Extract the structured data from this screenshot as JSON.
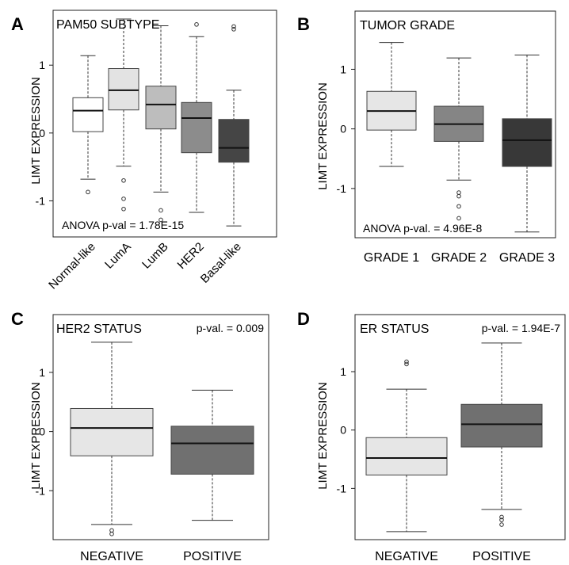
{
  "ylabel": "LIMT EXPRESSION",
  "chart_data": [
    {
      "type": "box",
      "panel": "A",
      "title": "PAM50 SUBTYPE",
      "stat": "ANOVA p-val = 1.78E-15",
      "ylim": [
        -1.45,
        1.75
      ],
      "yticks": [
        1,
        0,
        -1
      ],
      "categories": [
        "Normal-like",
        "LumA",
        "LumB",
        "HER2",
        "Basal-like"
      ],
      "colors": [
        "#ffffff",
        "#e3e3e3",
        "#bdbdbd",
        "#8c8c8c",
        "#454545"
      ],
      "boxes": [
        {
          "min": -0.68,
          "q1": 0.02,
          "median": 0.33,
          "q3": 0.52,
          "max": 1.14,
          "outliers": [
            -0.87
          ]
        },
        {
          "min": -0.49,
          "q1": 0.34,
          "median": 0.63,
          "q3": 0.95,
          "max": 1.68,
          "outliers": [
            -0.7,
            -0.97,
            -1.12
          ]
        },
        {
          "min": -0.87,
          "q1": 0.06,
          "median": 0.42,
          "q3": 0.69,
          "max": 1.58,
          "outliers": [
            -1.14,
            -1.28
          ]
        },
        {
          "min": -1.17,
          "q1": -0.29,
          "median": 0.22,
          "q3": 0.45,
          "max": 1.42,
          "outliers": [
            1.6
          ]
        },
        {
          "min": -1.37,
          "q1": -0.43,
          "median": -0.22,
          "q3": 0.2,
          "max": 0.63,
          "outliers": [
            1.53,
            1.57
          ]
        }
      ]
    },
    {
      "type": "box",
      "panel": "B",
      "title": "TUMOR GRADE",
      "stat": "ANOVA p-val. = 4.96E-8",
      "ylim": [
        -1.8,
        1.95
      ],
      "yticks": [
        1,
        0,
        -1
      ],
      "categories": [
        "GRADE 1",
        "GRADE 2",
        "GRADE 3"
      ],
      "colors": [
        "#e6e6e6",
        "#858585",
        "#383838"
      ],
      "boxes": [
        {
          "min": -0.63,
          "q1": -0.02,
          "median": 0.3,
          "q3": 0.63,
          "max": 1.45,
          "outliers": []
        },
        {
          "min": -0.86,
          "q1": -0.21,
          "median": 0.08,
          "q3": 0.38,
          "max": 1.19,
          "outliers": [
            -1.07,
            -1.13,
            -1.3,
            -1.5
          ]
        },
        {
          "min": -1.73,
          "q1": -0.63,
          "median": -0.19,
          "q3": 0.17,
          "max": 1.24,
          "outliers": []
        }
      ]
    },
    {
      "type": "box",
      "panel": "C",
      "title": "HER2 STATUS",
      "stat": "p-val. = 0.009",
      "ylim": [
        -1.8,
        1.95
      ],
      "yticks": [
        1,
        0,
        -1
      ],
      "categories": [
        "NEGATIVE",
        "POSITIVE"
      ],
      "colors": [
        "#e6e6e6",
        "#707070"
      ],
      "boxes": [
        {
          "min": -1.57,
          "q1": -0.41,
          "median": 0.06,
          "q3": 0.39,
          "max": 1.51,
          "outliers": [
            -1.67,
            -1.73
          ]
        },
        {
          "min": -1.5,
          "q1": -0.72,
          "median": -0.2,
          "q3": 0.09,
          "max": 0.7,
          "outliers": []
        }
      ]
    },
    {
      "type": "box",
      "panel": "D",
      "title": "ER STATUS",
      "stat": "p-val. = 1.94E-7",
      "ylim": [
        -1.85,
        1.95
      ],
      "yticks": [
        1,
        0,
        -1
      ],
      "categories": [
        "NEGATIVE",
        "POSITIVE"
      ],
      "colors": [
        "#e6e6e6",
        "#707070"
      ],
      "boxes": [
        {
          "min": -1.74,
          "q1": -0.77,
          "median": -0.48,
          "q3": -0.13,
          "max": 0.7,
          "outliers": [
            1.13,
            1.17
          ]
        },
        {
          "min": -1.36,
          "q1": -0.29,
          "median": 0.1,
          "q3": 0.44,
          "max": 1.49,
          "outliers": [
            -1.49,
            -1.54,
            -1.62
          ]
        }
      ]
    }
  ]
}
